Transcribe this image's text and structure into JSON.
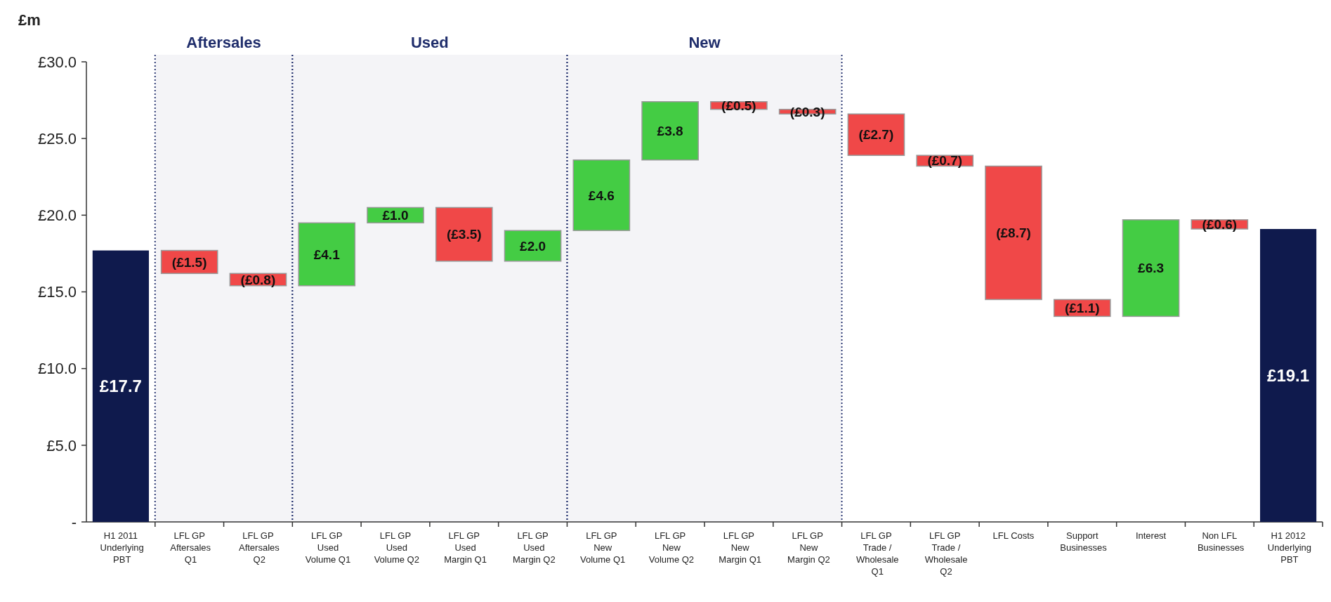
{
  "chart_data": {
    "type": "bar",
    "ylabel": "£m",
    "categories": [
      "H1 2011 Underlying PBT",
      "LFL GP Aftersales Q1",
      "LFL GP Aftersales Q2",
      "LFL GP Used Volume Q1",
      "LFL GP Used Volume Q2",
      "LFL GP Used Margin Q1",
      "LFL GP Used Margin Q2",
      "LFL GP New Volume Q1",
      "LFL GP New Volume Q2",
      "LFL GP New Margin Q1",
      "LFL GP New Margin Q2",
      "LFL GP Trade / Wholesale Q1",
      "LFL GP Trade / Wholesale Q2",
      "LFL Costs",
      "Support Businesses",
      "Interest",
      "Non LFL Businesses",
      "H1 2012 Underlying PBT"
    ],
    "values": [
      17.7,
      -1.5,
      -0.8,
      4.1,
      1.0,
      -3.5,
      2.0,
      4.6,
      3.8,
      -0.5,
      -0.3,
      -2.7,
      -0.7,
      -8.7,
      -1.1,
      6.3,
      -0.6,
      19.1
    ],
    "base": [
      0,
      17.7,
      16.2,
      15.4,
      19.5,
      20.5,
      17.0,
      19.0,
      23.6,
      27.4,
      26.9,
      26.6,
      23.9,
      23.2,
      14.5,
      13.4,
      19.7,
      0
    ],
    "colors": [
      "#0f1a4d",
      "#f04848",
      "#f04848",
      "#44cc44",
      "#44cc44",
      "#f04848",
      "#44cc44",
      "#44cc44",
      "#44cc44",
      "#f04848",
      "#f04848",
      "#f04848",
      "#f04848",
      "#f04848",
      "#f04848",
      "#44cc44",
      "#f04848",
      "#0f1a4d"
    ],
    "value_labels": [
      "£17.7",
      "(£1.5)",
      "(£0.8)",
      "£4.1",
      "£1.0",
      "(£3.5)",
      "£2.0",
      "£4.6",
      "£3.8",
      "(£0.5)",
      "(£0.3)",
      "(£2.7)",
      "(£0.7)",
      "(£8.7)",
      "(£1.1)",
      "£6.3",
      "(£0.6)",
      "£19.1"
    ],
    "ylim": [
      0,
      30
    ],
    "yticks": [
      {
        "value": 0,
        "label": "-"
      },
      {
        "value": 5,
        "label": "£5.0"
      },
      {
        "value": 10,
        "label": "£10.0"
      },
      {
        "value": 15,
        "label": "£15.0"
      },
      {
        "value": 20,
        "label": "£20.0"
      },
      {
        "value": 25,
        "label": "£25.0"
      },
      {
        "value": 30,
        "label": "£30.0"
      }
    ],
    "bands": [
      {
        "axis": "x",
        "from": "LFL GP Aftersales Q1",
        "to": "LFL GP Aftersales Q2",
        "label": "Aftersales",
        "color": "#1f2d6b"
      },
      {
        "axis": "x",
        "from": "LFL GP Used Volume Q1",
        "to": "LFL GP Used Margin Q2",
        "label": "Used",
        "color": "#1f2d6b"
      },
      {
        "axis": "x",
        "from": "LFL GP New Volume Q1",
        "to": "LFL GP New Margin Q2",
        "label": "New",
        "color": "#1f2d6b"
      }
    ]
  }
}
